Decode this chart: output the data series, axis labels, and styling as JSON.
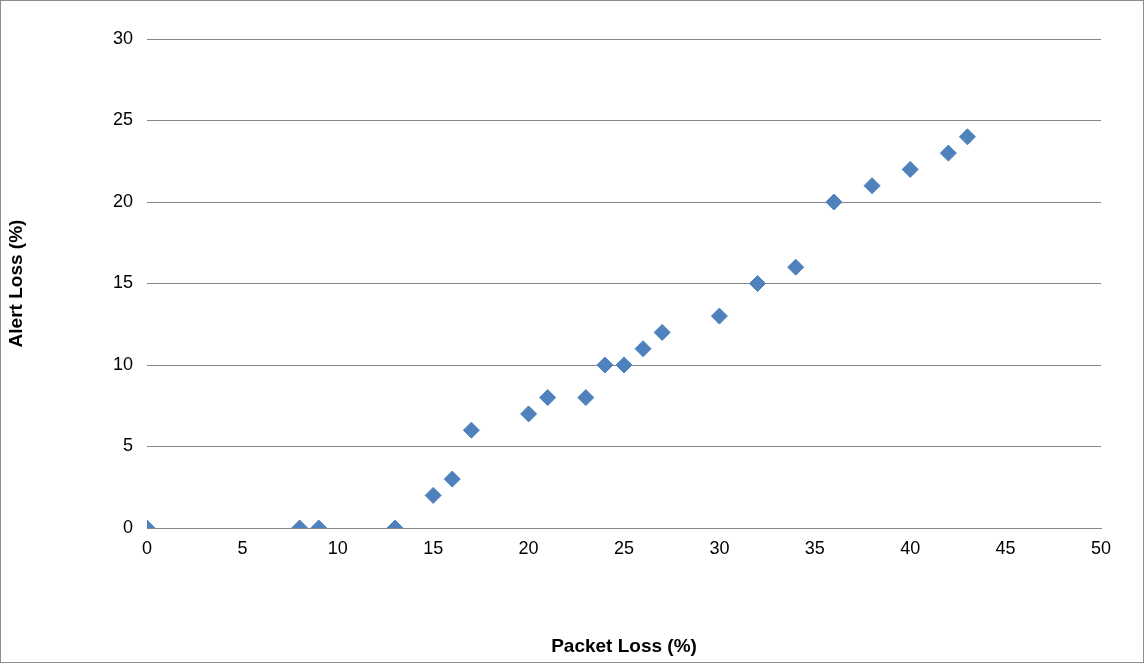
{
  "chart_data": {
    "type": "scatter",
    "xlabel": "Packet Loss (%)",
    "ylabel": "Alert Loss (%)",
    "x": [
      0,
      8,
      9,
      13,
      15,
      16,
      17,
      20,
      21,
      23,
      24,
      25,
      26,
      27,
      30,
      32,
      34,
      36,
      38,
      40,
      42,
      43
    ],
    "series": [
      {
        "color": "#4f81bd",
        "values": [
          0,
          0,
          0,
          0,
          2,
          3,
          6,
          7,
          8,
          8,
          10,
          10,
          11,
          12,
          13,
          15,
          16,
          20,
          21,
          22,
          23,
          24
        ]
      }
    ],
    "xlim": [
      0,
      50
    ],
    "xticks": [
      0,
      5,
      10,
      15,
      20,
      25,
      30,
      35,
      40,
      45,
      50
    ],
    "ylim": [
      0,
      30
    ],
    "yticks": [
      0,
      5,
      10,
      15,
      20,
      25,
      30
    ],
    "grid": "y",
    "legend": false,
    "marker": "diamond"
  }
}
